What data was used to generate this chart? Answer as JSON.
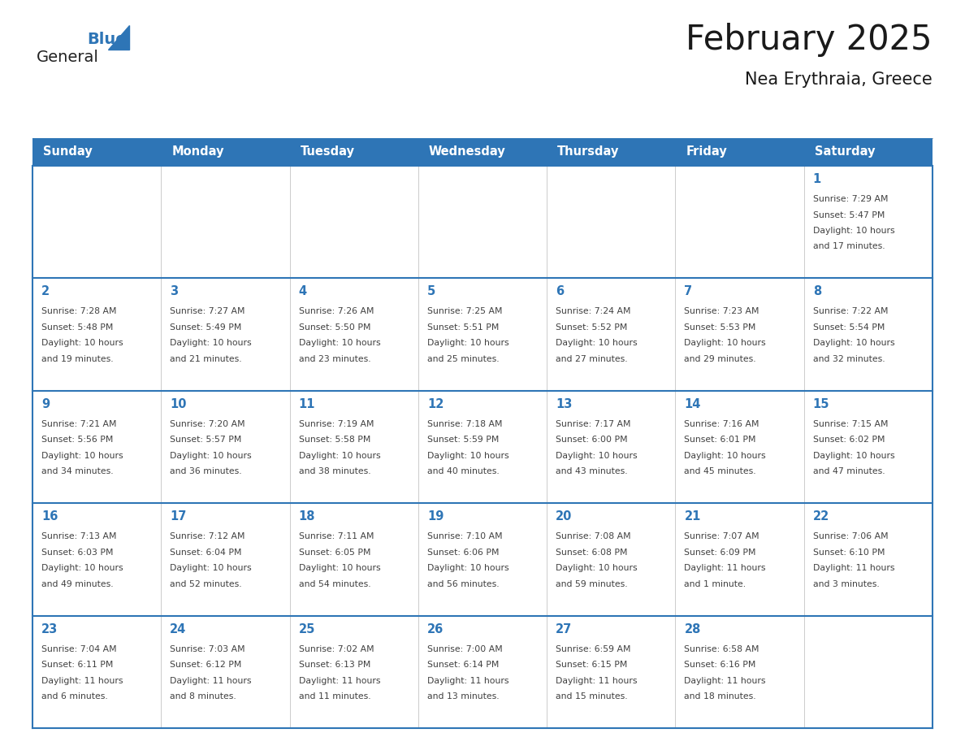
{
  "title": "February 2025",
  "subtitle": "Nea Erythraia, Greece",
  "days_of_week": [
    "Sunday",
    "Monday",
    "Tuesday",
    "Wednesday",
    "Thursday",
    "Friday",
    "Saturday"
  ],
  "header_bg_color": "#2E75B6",
  "header_text_color": "#FFFFFF",
  "cell_bg_color": "#FFFFFF",
  "grid_line_color": "#2E75B6",
  "day_number_color": "#2E75B6",
  "cell_text_color": "#404040",
  "title_color": "#1a1a1a",
  "logo_general_color": "#222222",
  "logo_blue_color": "#2E75B6",
  "weeks": [
    [
      {
        "day": null,
        "info": null
      },
      {
        "day": null,
        "info": null
      },
      {
        "day": null,
        "info": null
      },
      {
        "day": null,
        "info": null
      },
      {
        "day": null,
        "info": null
      },
      {
        "day": null,
        "info": null
      },
      {
        "day": 1,
        "info": "Sunrise: 7:29 AM\nSunset: 5:47 PM\nDaylight: 10 hours\nand 17 minutes."
      }
    ],
    [
      {
        "day": 2,
        "info": "Sunrise: 7:28 AM\nSunset: 5:48 PM\nDaylight: 10 hours\nand 19 minutes."
      },
      {
        "day": 3,
        "info": "Sunrise: 7:27 AM\nSunset: 5:49 PM\nDaylight: 10 hours\nand 21 minutes."
      },
      {
        "day": 4,
        "info": "Sunrise: 7:26 AM\nSunset: 5:50 PM\nDaylight: 10 hours\nand 23 minutes."
      },
      {
        "day": 5,
        "info": "Sunrise: 7:25 AM\nSunset: 5:51 PM\nDaylight: 10 hours\nand 25 minutes."
      },
      {
        "day": 6,
        "info": "Sunrise: 7:24 AM\nSunset: 5:52 PM\nDaylight: 10 hours\nand 27 minutes."
      },
      {
        "day": 7,
        "info": "Sunrise: 7:23 AM\nSunset: 5:53 PM\nDaylight: 10 hours\nand 29 minutes."
      },
      {
        "day": 8,
        "info": "Sunrise: 7:22 AM\nSunset: 5:54 PM\nDaylight: 10 hours\nand 32 minutes."
      }
    ],
    [
      {
        "day": 9,
        "info": "Sunrise: 7:21 AM\nSunset: 5:56 PM\nDaylight: 10 hours\nand 34 minutes."
      },
      {
        "day": 10,
        "info": "Sunrise: 7:20 AM\nSunset: 5:57 PM\nDaylight: 10 hours\nand 36 minutes."
      },
      {
        "day": 11,
        "info": "Sunrise: 7:19 AM\nSunset: 5:58 PM\nDaylight: 10 hours\nand 38 minutes."
      },
      {
        "day": 12,
        "info": "Sunrise: 7:18 AM\nSunset: 5:59 PM\nDaylight: 10 hours\nand 40 minutes."
      },
      {
        "day": 13,
        "info": "Sunrise: 7:17 AM\nSunset: 6:00 PM\nDaylight: 10 hours\nand 43 minutes."
      },
      {
        "day": 14,
        "info": "Sunrise: 7:16 AM\nSunset: 6:01 PM\nDaylight: 10 hours\nand 45 minutes."
      },
      {
        "day": 15,
        "info": "Sunrise: 7:15 AM\nSunset: 6:02 PM\nDaylight: 10 hours\nand 47 minutes."
      }
    ],
    [
      {
        "day": 16,
        "info": "Sunrise: 7:13 AM\nSunset: 6:03 PM\nDaylight: 10 hours\nand 49 minutes."
      },
      {
        "day": 17,
        "info": "Sunrise: 7:12 AM\nSunset: 6:04 PM\nDaylight: 10 hours\nand 52 minutes."
      },
      {
        "day": 18,
        "info": "Sunrise: 7:11 AM\nSunset: 6:05 PM\nDaylight: 10 hours\nand 54 minutes."
      },
      {
        "day": 19,
        "info": "Sunrise: 7:10 AM\nSunset: 6:06 PM\nDaylight: 10 hours\nand 56 minutes."
      },
      {
        "day": 20,
        "info": "Sunrise: 7:08 AM\nSunset: 6:08 PM\nDaylight: 10 hours\nand 59 minutes."
      },
      {
        "day": 21,
        "info": "Sunrise: 7:07 AM\nSunset: 6:09 PM\nDaylight: 11 hours\nand 1 minute."
      },
      {
        "day": 22,
        "info": "Sunrise: 7:06 AM\nSunset: 6:10 PM\nDaylight: 11 hours\nand 3 minutes."
      }
    ],
    [
      {
        "day": 23,
        "info": "Sunrise: 7:04 AM\nSunset: 6:11 PM\nDaylight: 11 hours\nand 6 minutes."
      },
      {
        "day": 24,
        "info": "Sunrise: 7:03 AM\nSunset: 6:12 PM\nDaylight: 11 hours\nand 8 minutes."
      },
      {
        "day": 25,
        "info": "Sunrise: 7:02 AM\nSunset: 6:13 PM\nDaylight: 11 hours\nand 11 minutes."
      },
      {
        "day": 26,
        "info": "Sunrise: 7:00 AM\nSunset: 6:14 PM\nDaylight: 11 hours\nand 13 minutes."
      },
      {
        "day": 27,
        "info": "Sunrise: 6:59 AM\nSunset: 6:15 PM\nDaylight: 11 hours\nand 15 minutes."
      },
      {
        "day": 28,
        "info": "Sunrise: 6:58 AM\nSunset: 6:16 PM\nDaylight: 11 hours\nand 18 minutes."
      },
      {
        "day": null,
        "info": null
      }
    ]
  ]
}
